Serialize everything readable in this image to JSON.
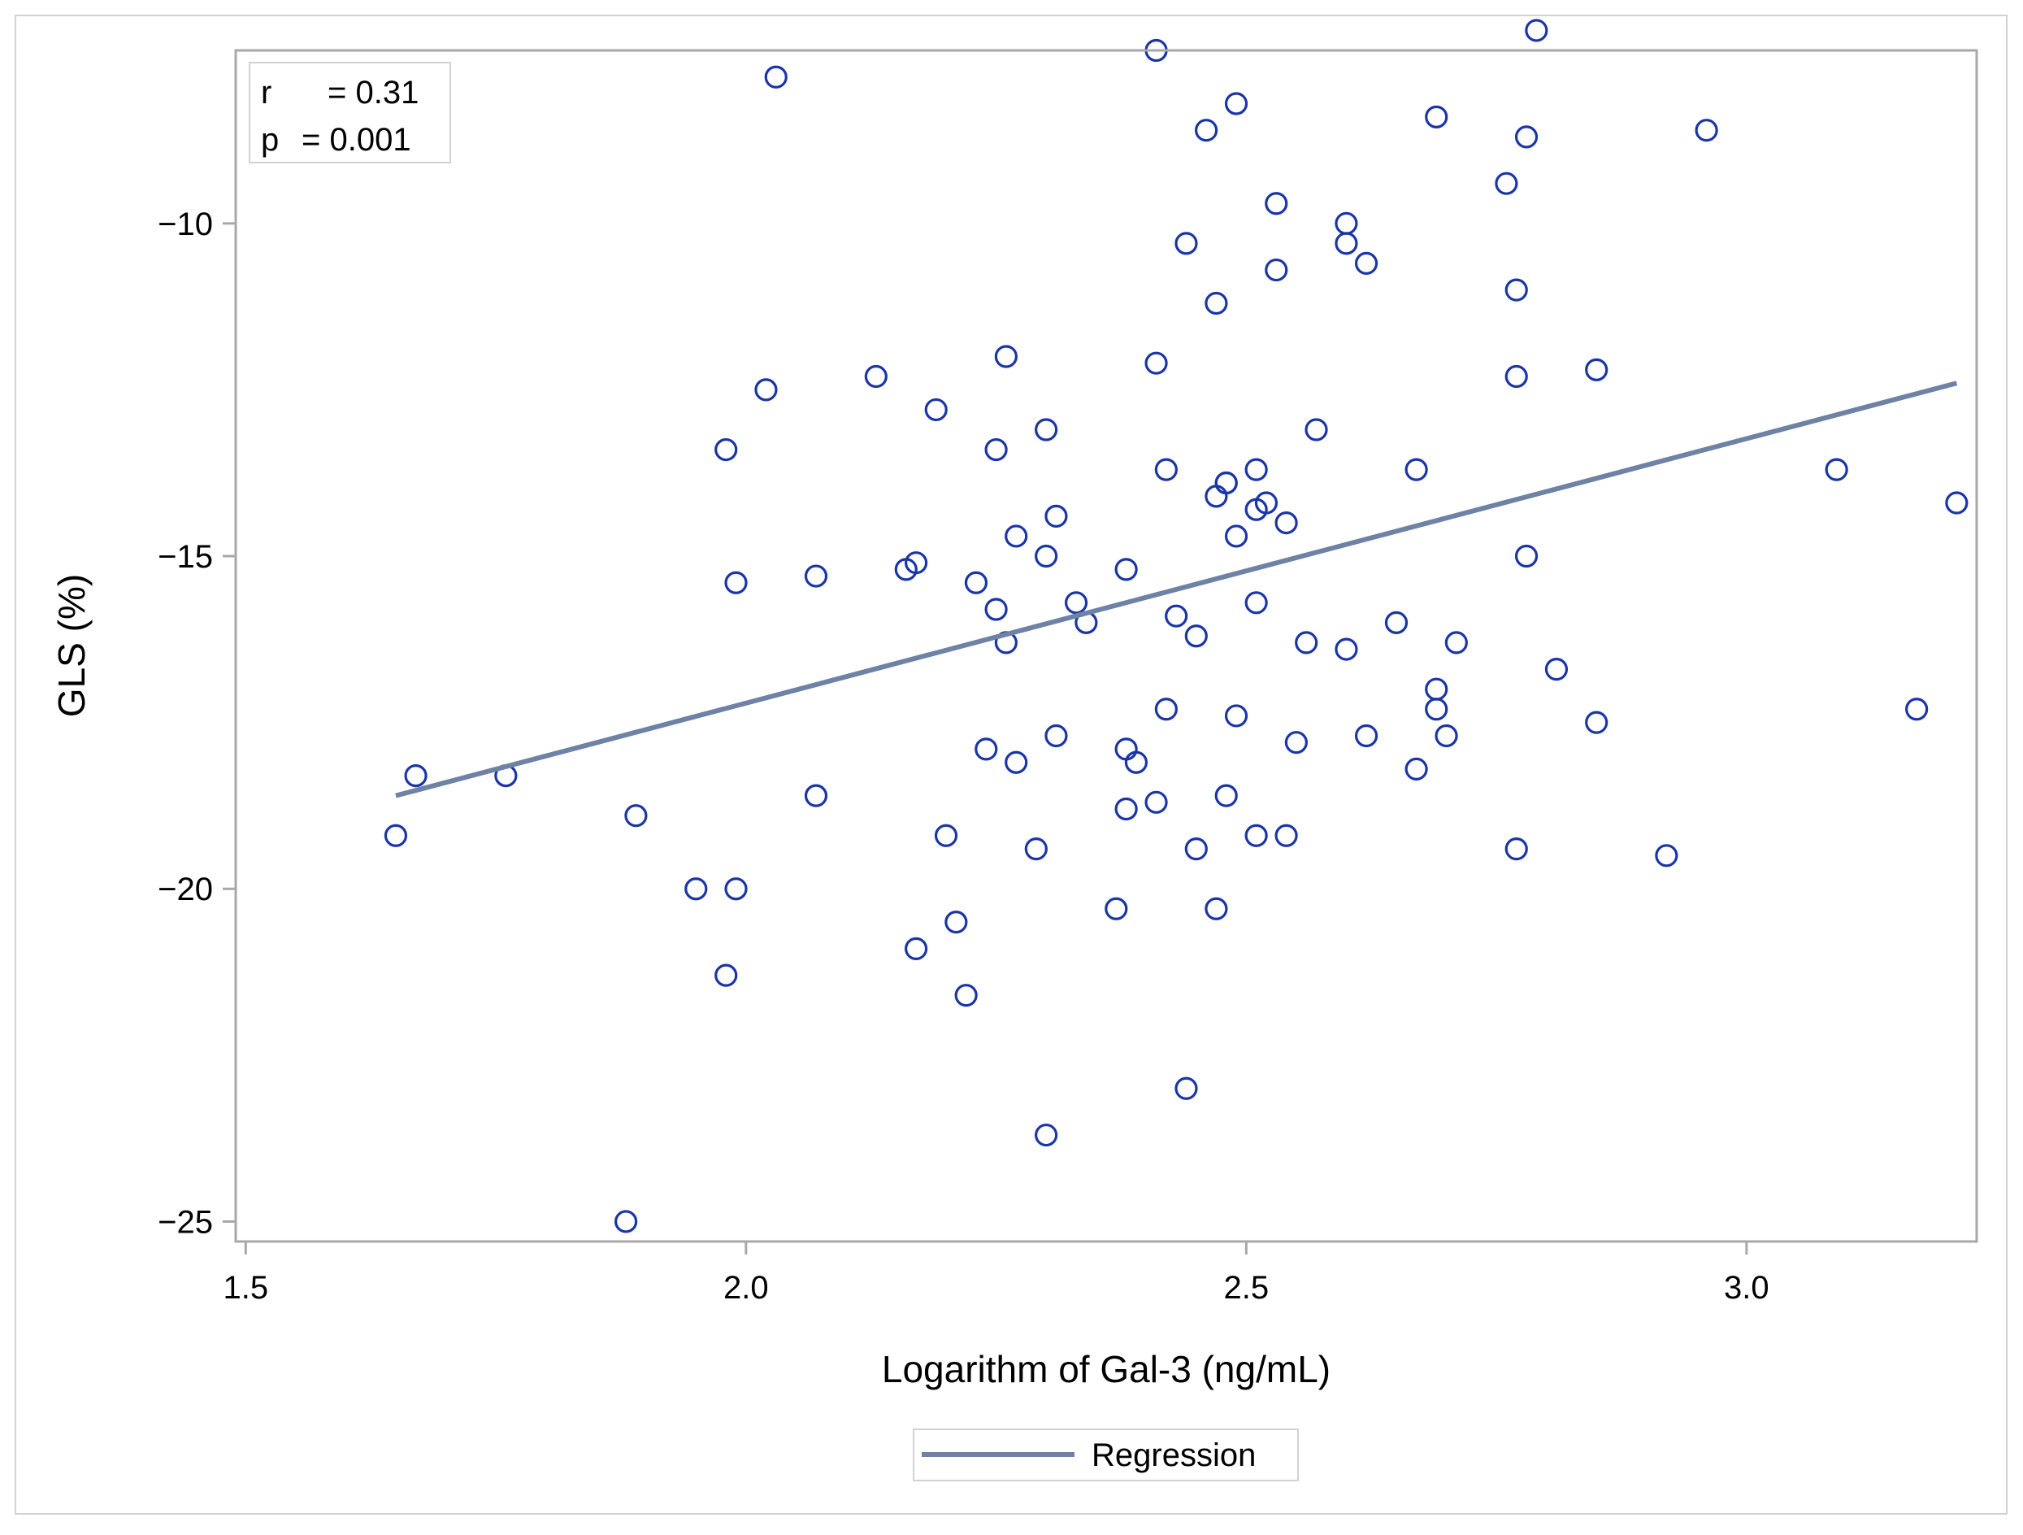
{
  "chart_data": {
    "type": "scatter",
    "title": "",
    "xlabel": "Logarithm of Gal-3 (ng/mL)",
    "ylabel": "GLS (%)",
    "xlim": [
      1.49,
      3.23
    ],
    "ylim": [
      -25.3,
      -7.4
    ],
    "xticks": [
      {
        "value": 1.5,
        "label": "1.5"
      },
      {
        "value": 2.0,
        "label": "2.0"
      },
      {
        "value": 2.5,
        "label": "2.5"
      },
      {
        "value": 3.0,
        "label": "3.0"
      }
    ],
    "yticks": [
      {
        "value": -10,
        "label": "−10"
      },
      {
        "value": -15,
        "label": "−15"
      },
      {
        "value": -20,
        "label": "−20"
      },
      {
        "value": -25,
        "label": "−25"
      }
    ],
    "colors": {
      "markers": "#1a35a8",
      "regression": "#6e82a6",
      "frame": "#a8a8a8"
    },
    "stats": {
      "r_label": "r",
      "r_value": "= 0.31",
      "p_label": "p",
      "p_value": "= 0.001"
    },
    "legend": {
      "entries": [
        "Regression"
      ],
      "position": "bottom-center"
    },
    "regression": {
      "x": [
        1.65,
        3.21
      ],
      "y": [
        -18.6,
        -12.4
      ]
    },
    "points": [
      [
        1.65,
        -19.2
      ],
      [
        1.67,
        -18.3
      ],
      [
        1.76,
        -18.3
      ],
      [
        1.88,
        -25.0
      ],
      [
        1.89,
        -18.9
      ],
      [
        1.95,
        -20.0
      ],
      [
        1.98,
        -21.3
      ],
      [
        1.98,
        -13.4
      ],
      [
        1.99,
        -15.4
      ],
      [
        1.99,
        -20.0
      ],
      [
        2.02,
        -12.5
      ],
      [
        2.03,
        -7.8
      ],
      [
        2.07,
        -15.3
      ],
      [
        2.07,
        -18.6
      ],
      [
        2.13,
        -12.3
      ],
      [
        2.16,
        -15.2
      ],
      [
        2.17,
        -15.1
      ],
      [
        2.17,
        -20.9
      ],
      [
        2.19,
        -12.8
      ],
      [
        2.2,
        -19.2
      ],
      [
        2.21,
        -20.5
      ],
      [
        2.22,
        -21.6
      ],
      [
        2.23,
        -15.4
      ],
      [
        2.24,
        -17.9
      ],
      [
        2.25,
        -15.8
      ],
      [
        2.25,
        -13.4
      ],
      [
        2.26,
        -12.0
      ],
      [
        2.26,
        -16.3
      ],
      [
        2.27,
        -14.7
      ],
      [
        2.27,
        -18.1
      ],
      [
        2.29,
        -19.4
      ],
      [
        2.3,
        -15.0
      ],
      [
        2.3,
        -13.1
      ],
      [
        2.3,
        -23.7
      ],
      [
        2.31,
        -14.4
      ],
      [
        2.31,
        -17.7
      ],
      [
        2.33,
        -15.7
      ],
      [
        2.34,
        -16.0
      ],
      [
        2.37,
        -20.3
      ],
      [
        2.38,
        -15.2
      ],
      [
        2.38,
        -17.9
      ],
      [
        2.38,
        -18.8
      ],
      [
        2.39,
        -18.1
      ],
      [
        2.41,
        -7.4
      ],
      [
        2.41,
        -12.1
      ],
      [
        2.41,
        -18.7
      ],
      [
        2.42,
        -13.7
      ],
      [
        2.42,
        -17.3
      ],
      [
        2.43,
        -15.9
      ],
      [
        2.44,
        -10.3
      ],
      [
        2.44,
        -23.0
      ],
      [
        2.45,
        -16.2
      ],
      [
        2.45,
        -19.4
      ],
      [
        2.46,
        -8.6
      ],
      [
        2.47,
        -14.1
      ],
      [
        2.47,
        -20.3
      ],
      [
        2.47,
        -11.2
      ],
      [
        2.48,
        -13.9
      ],
      [
        2.48,
        -13.9
      ],
      [
        2.49,
        -17.4
      ],
      [
        2.48,
        -18.6
      ],
      [
        2.49,
        -14.7
      ],
      [
        2.49,
        -8.2
      ],
      [
        2.51,
        -13.7
      ],
      [
        2.51,
        -14.3
      ],
      [
        2.51,
        -15.7
      ],
      [
        2.51,
        -19.2
      ],
      [
        2.52,
        -14.2
      ],
      [
        2.53,
        -9.7
      ],
      [
        2.53,
        -10.7
      ],
      [
        2.54,
        -14.5
      ],
      [
        2.54,
        -19.2
      ],
      [
        2.55,
        -17.8
      ],
      [
        2.56,
        -16.3
      ],
      [
        2.57,
        -13.1
      ],
      [
        2.6,
        -10.0
      ],
      [
        2.6,
        -10.3
      ],
      [
        2.6,
        -16.4
      ],
      [
        2.62,
        -10.6
      ],
      [
        2.62,
        -17.7
      ],
      [
        2.65,
        -16.0
      ],
      [
        2.67,
        -13.7
      ],
      [
        2.67,
        -18.2
      ],
      [
        2.69,
        -8.4
      ],
      [
        2.69,
        -17.0
      ],
      [
        2.69,
        -17.3
      ],
      [
        2.7,
        -17.7
      ],
      [
        2.71,
        -16.3
      ],
      [
        2.76,
        -9.4
      ],
      [
        2.77,
        -11.0
      ],
      [
        2.77,
        -12.3
      ],
      [
        2.77,
        -19.4
      ],
      [
        2.78,
        -8.7
      ],
      [
        2.78,
        -15.0
      ],
      [
        2.79,
        -7.1
      ],
      [
        2.81,
        -16.7
      ],
      [
        2.85,
        -12.2
      ],
      [
        2.85,
        -17.5
      ],
      [
        2.92,
        -19.5
      ],
      [
        2.96,
        -8.6
      ],
      [
        3.09,
        -13.7
      ],
      [
        3.17,
        -17.3
      ],
      [
        3.21,
        -14.2
      ]
    ]
  }
}
